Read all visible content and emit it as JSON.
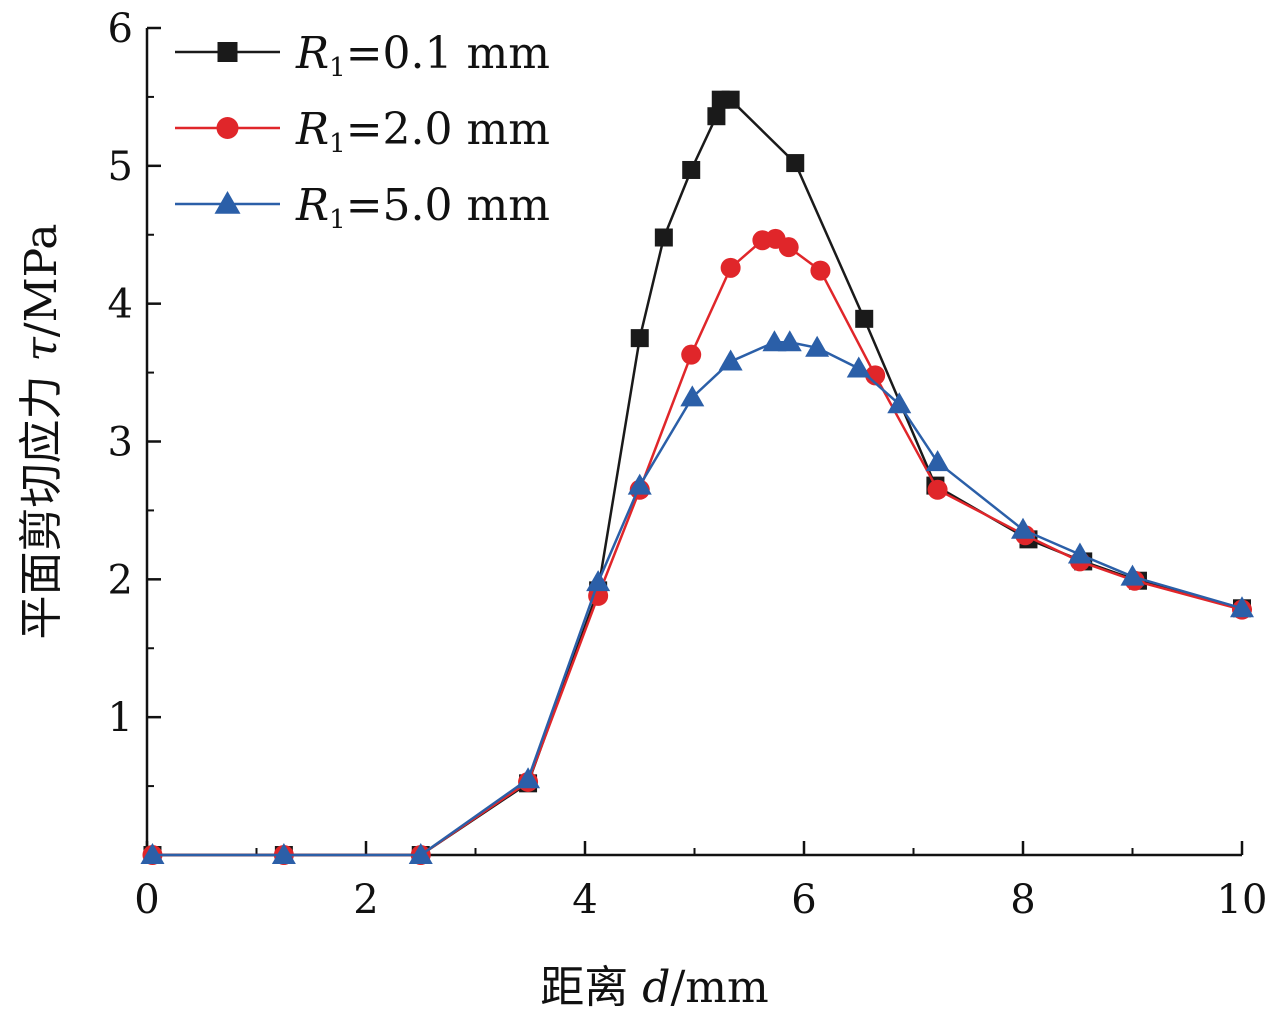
{
  "chart_data": {
    "type": "line",
    "xlabel": {
      "prefix": "距离 ",
      "var": "d",
      "unit": "/mm"
    },
    "ylabel": {
      "prefix": "平面剪切应力 ",
      "var": "τ",
      "unit": "/MPa"
    },
    "xlim": [
      0,
      10
    ],
    "ylim": [
      0,
      6
    ],
    "xticks": [
      "0",
      "2",
      "4",
      "6",
      "8",
      "10"
    ],
    "yticks": [
      "1",
      "2",
      "3",
      "4",
      "5",
      "6"
    ],
    "grid": false,
    "legend_position": "top-left",
    "series": [
      {
        "name": "R1=0.1 mm",
        "legend_var": "R",
        "legend_sub": "1",
        "legend_rest": "=0.1 mm",
        "marker": "square",
        "color": "#1a1a1a",
        "x": [
          0.05,
          1.25,
          2.5,
          3.48,
          4.12,
          4.5,
          4.72,
          4.97,
          5.2,
          5.24,
          5.33,
          5.92,
          6.55,
          7.2,
          8.05,
          8.55,
          9.05,
          10.0
        ],
        "y": [
          0.0,
          0.0,
          0.0,
          0.52,
          1.92,
          3.75,
          4.48,
          4.97,
          5.36,
          5.48,
          5.48,
          5.02,
          3.89,
          2.68,
          2.29,
          2.13,
          1.99,
          1.79
        ]
      },
      {
        "name": "R1=2.0 mm",
        "legend_var": "R",
        "legend_sub": "1",
        "legend_rest": "=2.0 mm",
        "marker": "circle",
        "color": "#e0262a",
        "x": [
          0.05,
          1.25,
          2.5,
          3.48,
          4.12,
          4.5,
          4.97,
          5.33,
          5.62,
          5.74,
          5.86,
          6.15,
          6.65,
          7.22,
          8.02,
          8.52,
          9.02,
          10.0
        ],
        "y": [
          0.0,
          0.0,
          0.0,
          0.53,
          1.88,
          2.65,
          3.63,
          4.26,
          4.46,
          4.47,
          4.41,
          4.24,
          3.48,
          2.65,
          2.32,
          2.13,
          1.99,
          1.78
        ]
      },
      {
        "name": "R1=5.0 mm",
        "legend_var": "R",
        "legend_sub": "1",
        "legend_rest": "=5.0 mm",
        "marker": "triangle",
        "color": "#2b5fa8",
        "x": [
          0.05,
          1.25,
          2.5,
          3.48,
          4.12,
          4.5,
          4.98,
          5.33,
          5.73,
          5.87,
          6.12,
          6.5,
          6.87,
          7.22,
          8.0,
          8.52,
          9.0,
          10.0
        ],
        "y": [
          0.0,
          0.0,
          0.0,
          0.55,
          1.98,
          2.68,
          3.32,
          3.58,
          3.72,
          3.72,
          3.68,
          3.53,
          3.27,
          2.85,
          2.36,
          2.18,
          2.02,
          1.79
        ]
      }
    ]
  }
}
